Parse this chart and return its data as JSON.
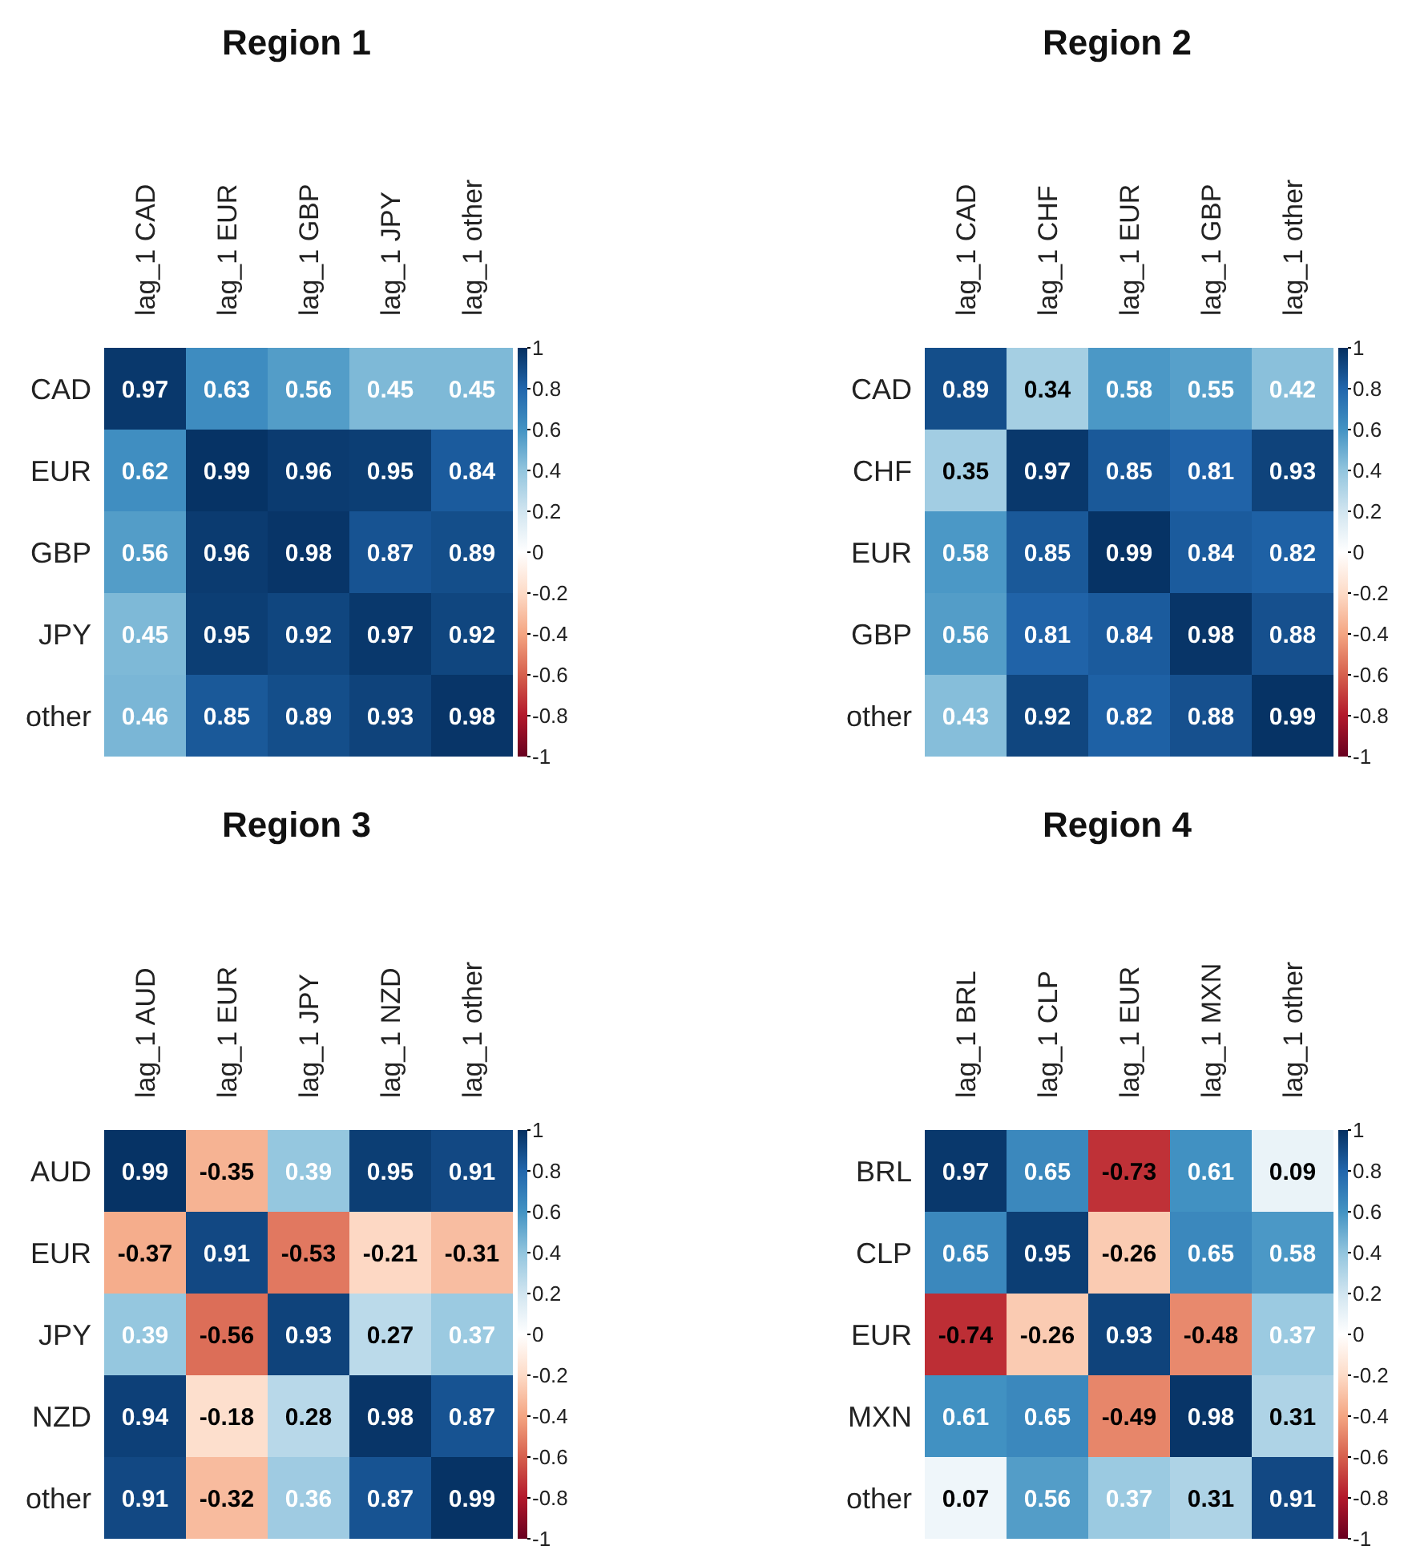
{
  "chart_data": [
    {
      "type": "heatmap",
      "title": "Region 1",
      "categories": [
        "lag_1 CAD",
        "lag_1 EUR",
        "lag_1 GBP",
        "lag_1 JPY",
        "lag_1 other"
      ],
      "y_categories": [
        "CAD",
        "EUR",
        "GBP",
        "JPY",
        "other"
      ],
      "cells": [
        [
          0.97,
          0.63,
          0.56,
          0.45,
          0.45
        ],
        [
          0.62,
          0.99,
          0.96,
          0.95,
          0.84
        ],
        [
          0.56,
          0.96,
          0.98,
          0.87,
          0.89
        ],
        [
          0.45,
          0.95,
          0.92,
          0.97,
          0.92
        ],
        [
          0.46,
          0.85,
          0.89,
          0.93,
          0.98
        ]
      ],
      "data_labels": true,
      "clim": [
        -1,
        1
      ],
      "cticks": [
        -1,
        -0.8,
        -0.6,
        -0.4,
        -0.2,
        0,
        0.2,
        0.4,
        0.6,
        0.8,
        1
      ]
    },
    {
      "type": "heatmap",
      "title": "Region 2",
      "categories": [
        "lag_1 CAD",
        "lag_1 CHF",
        "lag_1 EUR",
        "lag_1 GBP",
        "lag_1 other"
      ],
      "y_categories": [
        "CAD",
        "CHF",
        "EUR",
        "GBP",
        "other"
      ],
      "cells": [
        [
          0.89,
          0.34,
          0.58,
          0.55,
          0.42
        ],
        [
          0.35,
          0.97,
          0.85,
          0.81,
          0.93
        ],
        [
          0.58,
          0.85,
          0.99,
          0.84,
          0.82
        ],
        [
          0.56,
          0.81,
          0.84,
          0.98,
          0.88
        ],
        [
          0.43,
          0.92,
          0.82,
          0.88,
          0.99
        ]
      ],
      "data_labels": true,
      "clim": [
        -1,
        1
      ],
      "cticks": [
        -1,
        -0.8,
        -0.6,
        -0.4,
        -0.2,
        0,
        0.2,
        0.4,
        0.6,
        0.8,
        1
      ]
    },
    {
      "type": "heatmap",
      "title": "Region 3",
      "categories": [
        "lag_1 AUD",
        "lag_1 EUR",
        "lag_1 JPY",
        "lag_1 NZD",
        "lag_1 other"
      ],
      "y_categories": [
        "AUD",
        "EUR",
        "JPY",
        "NZD",
        "other"
      ],
      "cells": [
        [
          0.99,
          -0.35,
          0.39,
          0.95,
          0.91
        ],
        [
          -0.37,
          0.91,
          -0.53,
          -0.21,
          -0.31
        ],
        [
          0.39,
          -0.56,
          0.93,
          0.27,
          0.37
        ],
        [
          0.94,
          -0.18,
          0.28,
          0.98,
          0.87
        ],
        [
          0.91,
          -0.32,
          0.36,
          0.87,
          0.99
        ]
      ],
      "data_labels": true,
      "clim": [
        -1,
        1
      ],
      "cticks": [
        -1,
        -0.8,
        -0.6,
        -0.4,
        -0.2,
        0,
        0.2,
        0.4,
        0.6,
        0.8,
        1
      ]
    },
    {
      "type": "heatmap",
      "title": "Region 4",
      "categories": [
        "lag_1 BRL",
        "lag_1 CLP",
        "lag_1 EUR",
        "lag_1 MXN",
        "lag_1 other"
      ],
      "y_categories": [
        "BRL",
        "CLP",
        "EUR",
        "MXN",
        "other"
      ],
      "cells": [
        [
          0.97,
          0.65,
          -0.73,
          0.61,
          0.09
        ],
        [
          0.65,
          0.95,
          -0.26,
          0.65,
          0.58
        ],
        [
          -0.74,
          -0.26,
          0.93,
          -0.48,
          0.37
        ],
        [
          0.61,
          0.65,
          -0.49,
          0.98,
          0.31
        ],
        [
          0.07,
          0.56,
          0.37,
          0.31,
          0.91
        ]
      ],
      "data_labels": true,
      "clim": [
        -1,
        1
      ],
      "cticks": [
        -1,
        -0.8,
        -0.6,
        -0.4,
        -0.2,
        0,
        0.2,
        0.4,
        0.6,
        0.8,
        1
      ]
    }
  ]
}
